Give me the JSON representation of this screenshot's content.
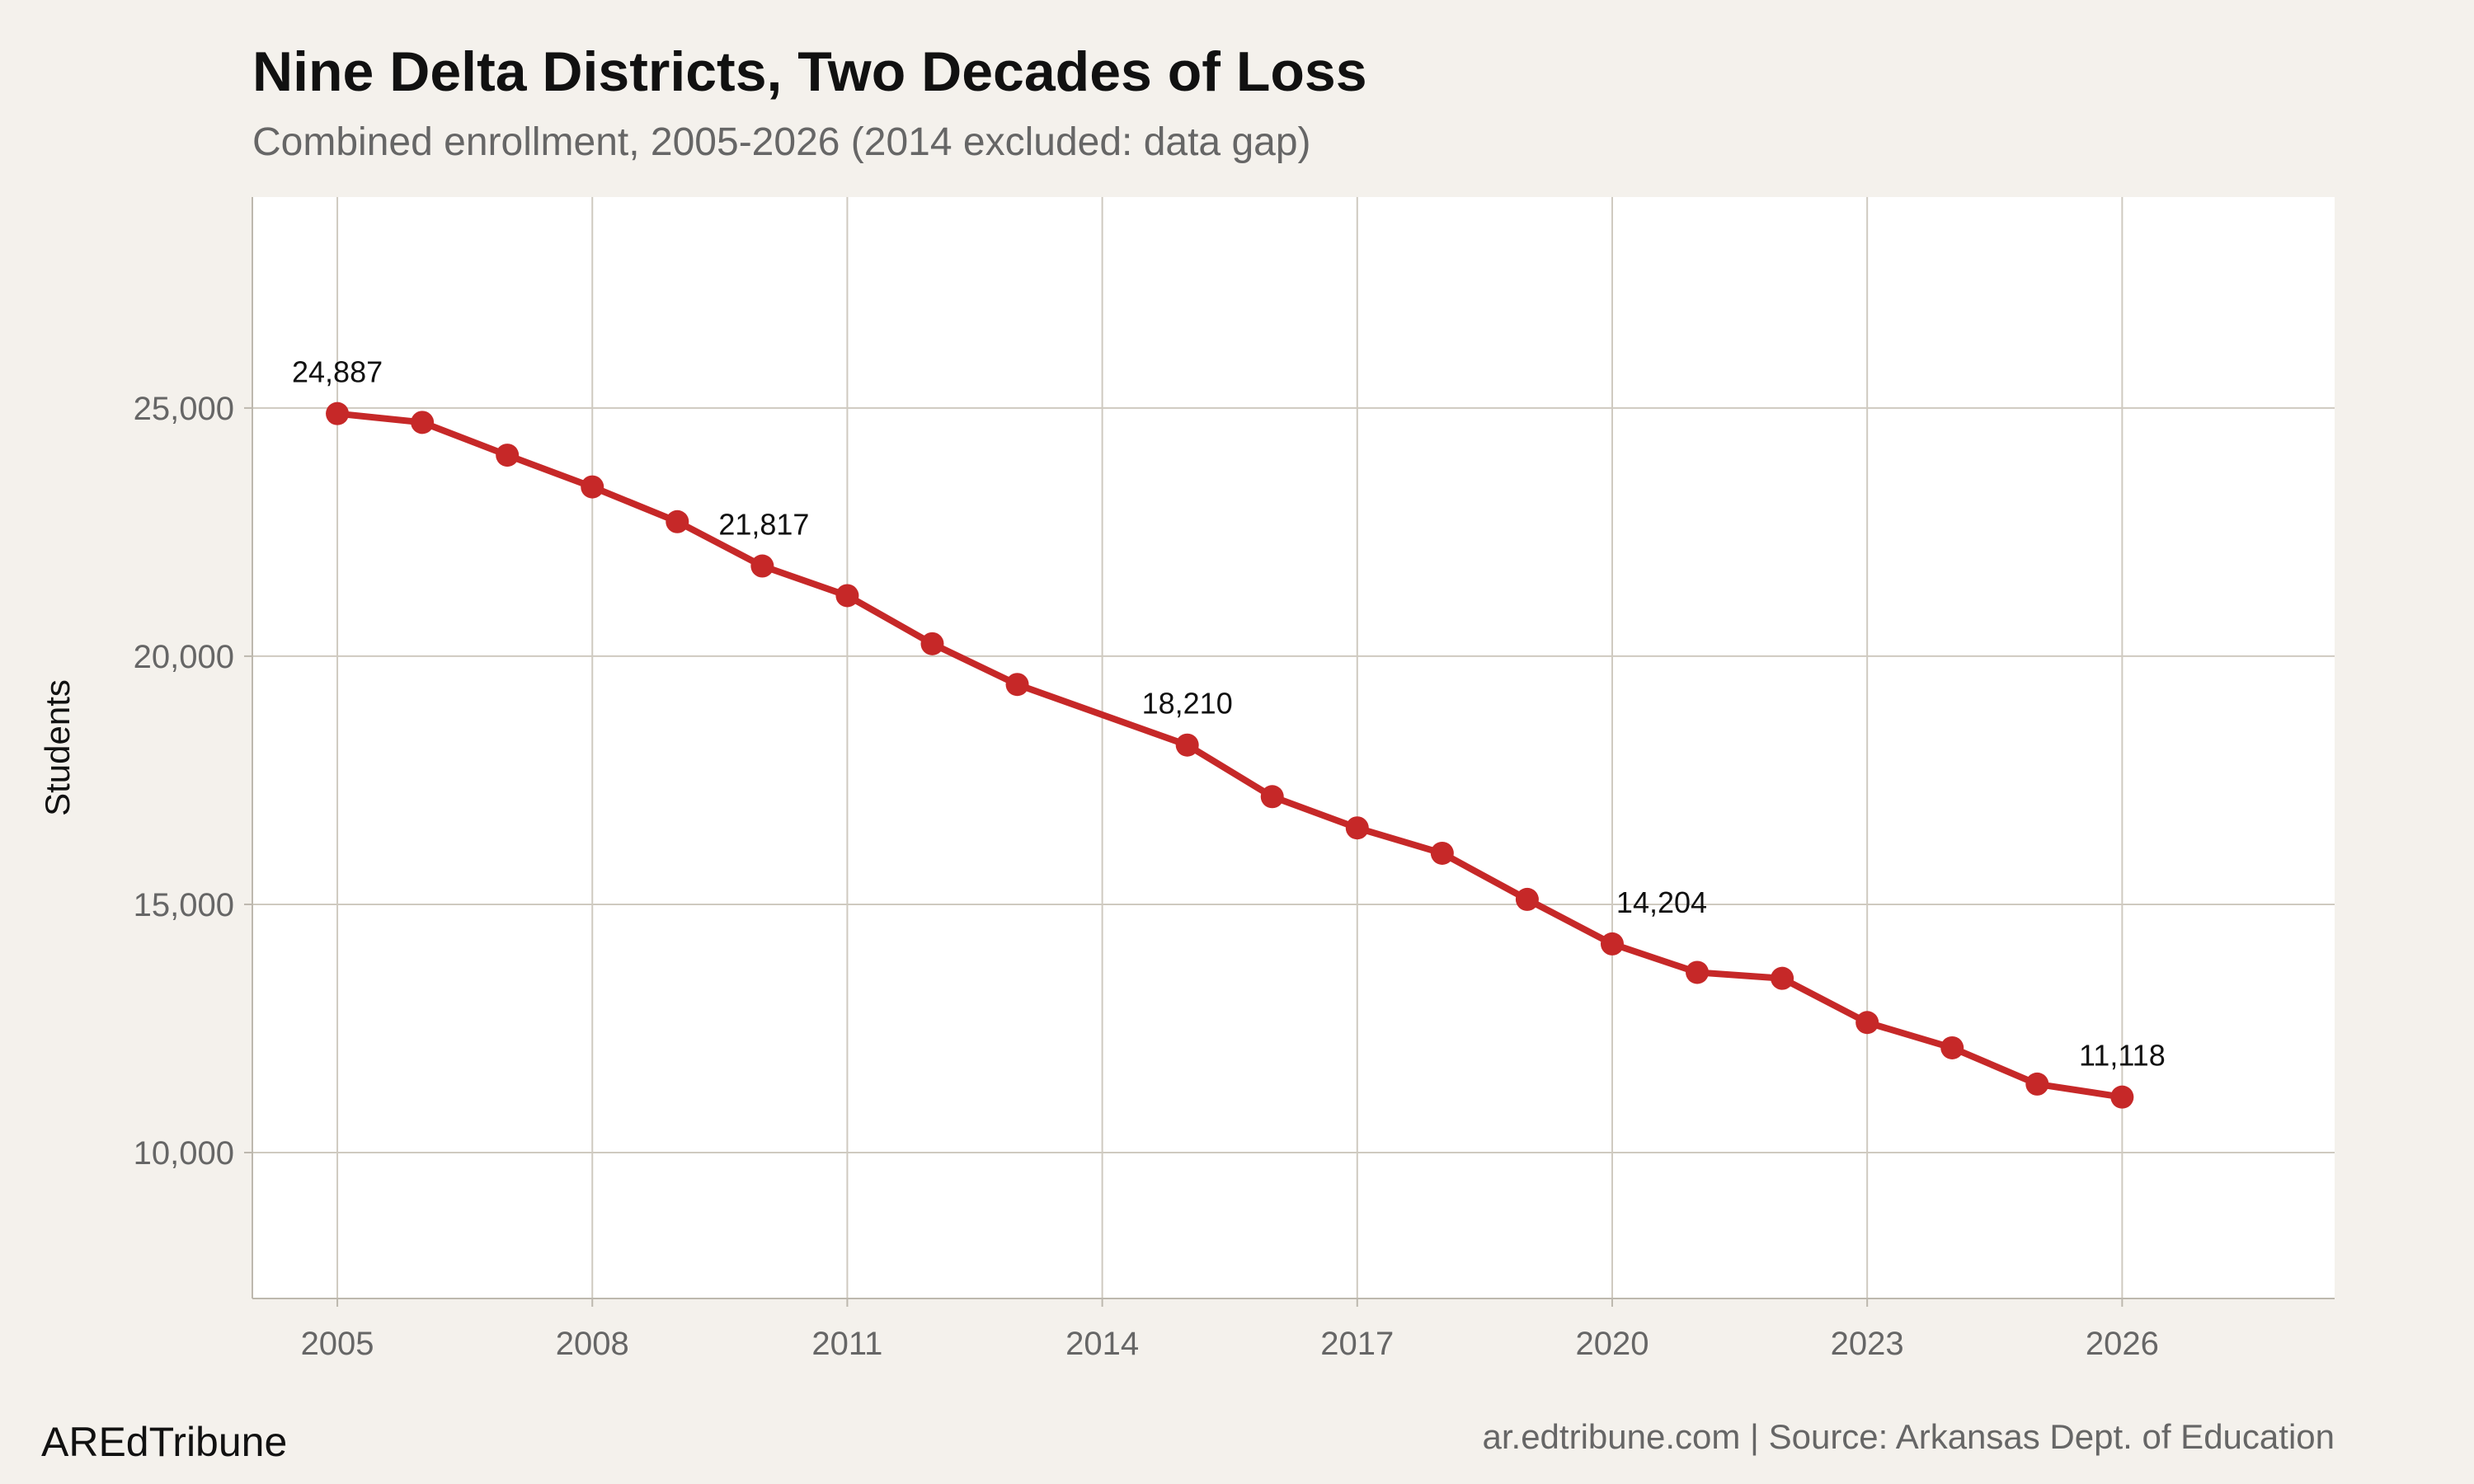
{
  "chart_data": {
    "type": "line",
    "title": "Nine Delta Districts, Two Decades of Loss",
    "subtitle": "Combined enrollment, 2005-2026 (2014 excluded: data gap)",
    "xlabel": "",
    "ylabel": "Students",
    "x": [
      2005,
      2006,
      2007,
      2008,
      2009,
      2010,
      2011,
      2012,
      2013,
      2015,
      2016,
      2017,
      2018,
      2019,
      2020,
      2021,
      2022,
      2023,
      2024,
      2025,
      2026
    ],
    "y": [
      24887,
      24710,
      24050,
      23410,
      22710,
      21817,
      21220,
      20250,
      19430,
      18210,
      17170,
      16540,
      16030,
      15100,
      14204,
      13630,
      13510,
      12620,
      12110,
      11380,
      11118
    ],
    "data_labels": [
      {
        "x": 2005,
        "text": "24,887"
      },
      {
        "x": 2010,
        "text": "21,817"
      },
      {
        "x": 2015,
        "text": "18,210"
      },
      {
        "x": 2020,
        "text": "14,204"
      },
      {
        "x": 2026,
        "text": "11,118"
      }
    ],
    "xticks": [
      2005,
      2008,
      2011,
      2014,
      2017,
      2020,
      2023,
      2026
    ],
    "xtick_labels": [
      "2005",
      "2008",
      "2011",
      "2014",
      "2017",
      "2020",
      "2023",
      "2026"
    ],
    "yticks": [
      10000,
      15000,
      20000,
      25000
    ],
    "ytick_labels": [
      "10,000",
      "15,000",
      "20,000",
      "25,000"
    ],
    "xlim": [
      2004,
      2028.5
    ],
    "ylim": [
      7060,
      29250
    ],
    "grid": true,
    "legend": "none",
    "colors": {
      "line": "#c62828",
      "grid": "#cfcac0",
      "panel": "#ffffff",
      "background": "#f4f1ec"
    }
  },
  "footer": {
    "brand": "AREdTribune",
    "source": "ar.edtribune.com | Source: Arkansas Dept. of Education"
  }
}
